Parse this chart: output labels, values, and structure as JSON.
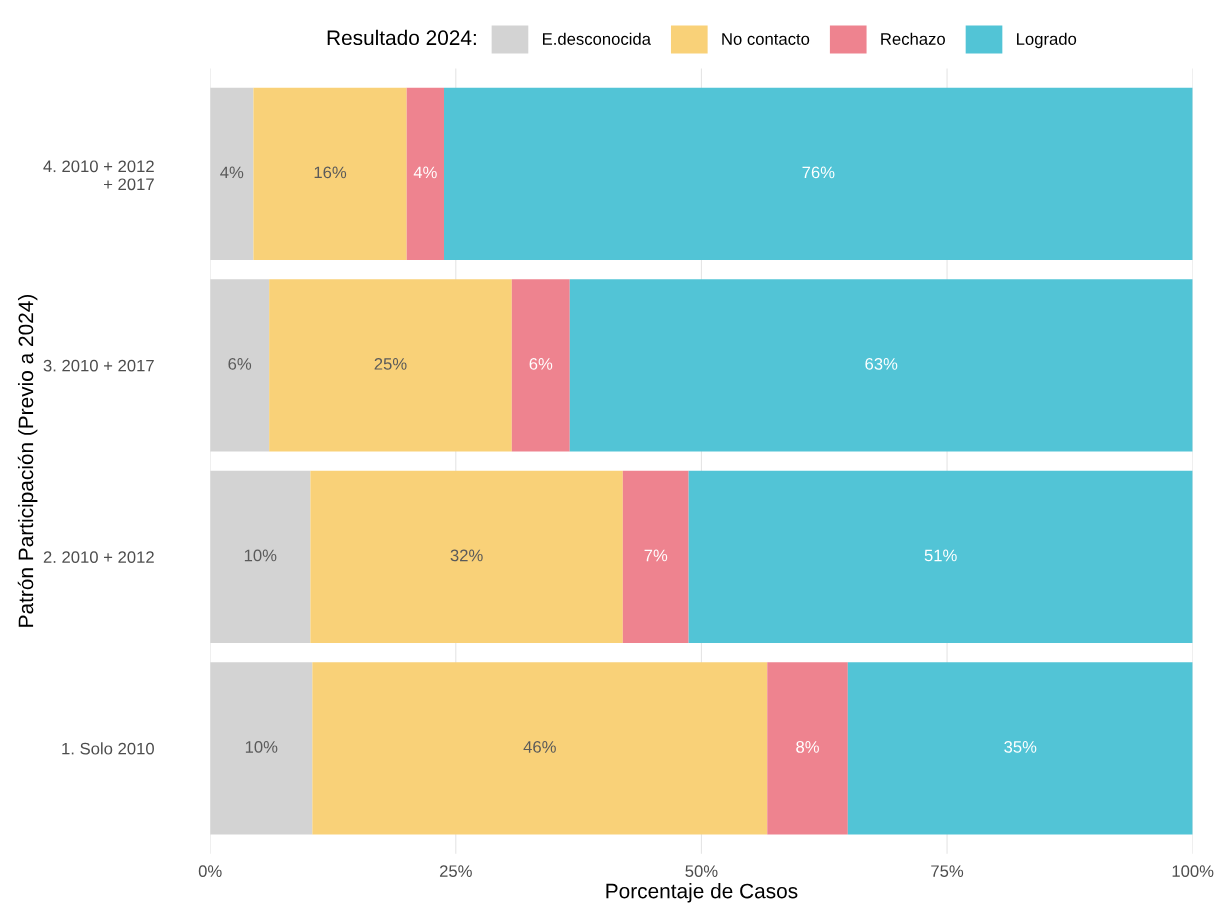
{
  "chart_data": {
    "type": "bar",
    "orientation": "horizontal",
    "stacked": true,
    "xlabel": "Porcentaje de Casos",
    "ylabel": "Patrón Participación (Previo a 2024)",
    "legend_title": "Resultado 2024:",
    "legend": "top",
    "grid": "x",
    "categories": [
      "4. 2010 + 2012\n+ 2017",
      "3. 2010 + 2017",
      "2. 2010 + 2012",
      "1. Solo 2010"
    ],
    "xlim": [
      0,
      100
    ],
    "xticks": [
      {
        "value": 0,
        "label": "0%"
      },
      {
        "value": 25,
        "label": "25%"
      },
      {
        "value": 50,
        "label": "50%"
      },
      {
        "value": 75,
        "label": "75%"
      },
      {
        "value": 100,
        "label": "100%"
      }
    ],
    "series": [
      {
        "name": "E.desconocida",
        "color": "#d3d3d3",
        "values": [
          4.4,
          6.0,
          10.2,
          10.4
        ],
        "value_labels": [
          "4%",
          "6%",
          "10%",
          "10%"
        ]
      },
      {
        "name": "No contacto",
        "color": "#f9d178",
        "values": [
          15.6,
          24.7,
          31.8,
          46.3
        ],
        "value_labels": [
          "16%",
          "25%",
          "32%",
          "46%"
        ]
      },
      {
        "name": "Rechazo",
        "color": "#ee838f",
        "values": [
          3.8,
          5.9,
          6.7,
          8.2
        ],
        "value_labels": [
          "4%",
          "6%",
          "7%",
          "8%"
        ]
      },
      {
        "name": "Logrado",
        "color": "#52c4d6",
        "values": [
          76.2,
          63.4,
          51.3,
          35.1
        ],
        "value_labels": [
          "76%",
          "63%",
          "51%",
          "35%"
        ]
      }
    ]
  }
}
